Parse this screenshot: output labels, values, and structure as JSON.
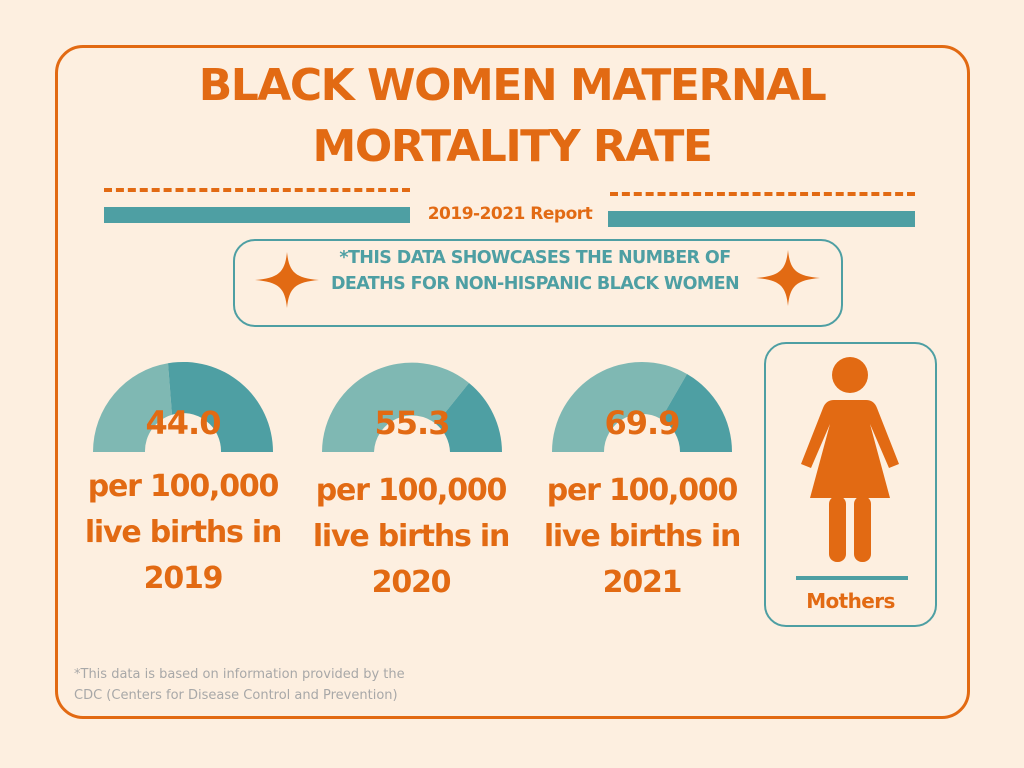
{
  "title": {
    "line1": "BLACK WOMEN MATERNAL",
    "line2": "MORTALITY RATE"
  },
  "report_label": "2019-2021 Report",
  "note": "*THIS DATA SHOWCASES THE NUMBER OF DEATHS FOR  NON-HISPANIC BLACK WOMEN",
  "stats": [
    {
      "value": "44.0",
      "caption_line1": "per 100,000",
      "caption_line2": "live births in",
      "year": "2019"
    },
    {
      "value": "55.3",
      "caption_line1": "per 100,000",
      "caption_line2": "live births in",
      "year": "2020"
    },
    {
      "value": "69.9",
      "caption_line1": "per 100,000",
      "caption_line2": "live births in",
      "year": "2021"
    }
  ],
  "mothers_label": "Mothers",
  "footnote": {
    "line1": "*This data is based on information provided by the",
    "line2": "CDC (Centers for Disease Control and Prevention)"
  },
  "colors": {
    "background": "#fdefe0",
    "accent_orange": "#e26a13",
    "teal_dark": "#4e9fa3",
    "teal_light": "#7fb8b3",
    "muted_text": "#a8a8a8"
  },
  "icons": {
    "decor": "four-point-star-icon",
    "mothers": "woman-figure-icon"
  }
}
